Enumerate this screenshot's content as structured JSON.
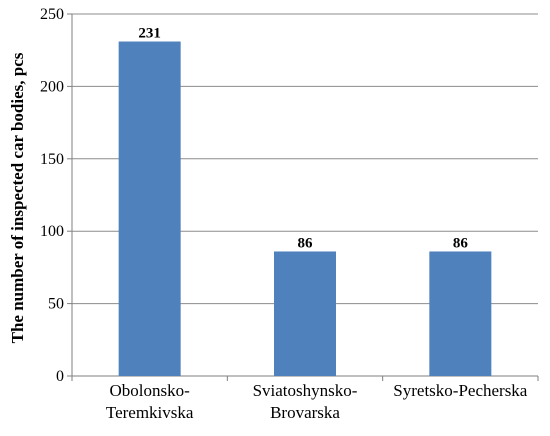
{
  "chart_data": {
    "type": "bar",
    "title": "",
    "xlabel": "",
    "ylabel": "The number of inspected car bodies, pcs",
    "categories": [
      [
        "Obolonsko-",
        "Teremkivska"
      ],
      [
        "Sviatoshynsko-",
        "Brovarska"
      ],
      [
        "Syretsko-Pecherska"
      ]
    ],
    "values": [
      231,
      86,
      86
    ],
    "data_labels": [
      "231",
      "86",
      "86"
    ],
    "ylim": [
      0,
      250
    ],
    "yticks": [
      "0",
      "50",
      "100",
      "150",
      "200",
      "250"
    ],
    "grid": true,
    "legend": "none",
    "colors": {
      "bar": "#4f81bd",
      "grid": "#8c8c8c",
      "axis": "#7f7f7f"
    }
  }
}
